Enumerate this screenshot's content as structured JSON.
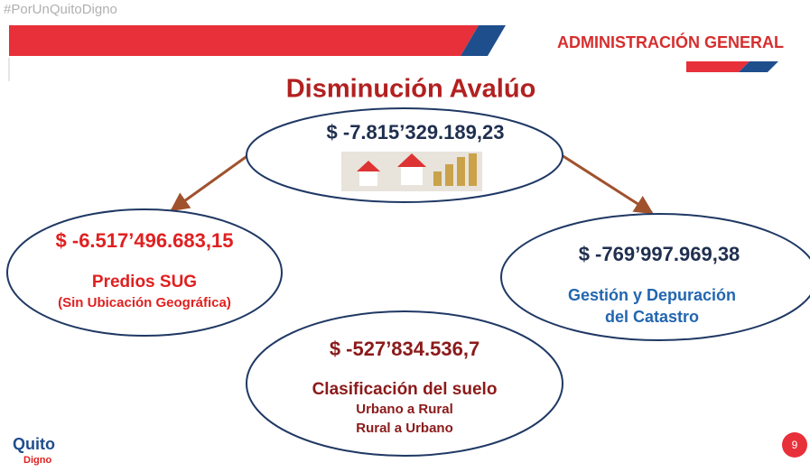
{
  "header": {
    "hashtag": "#PorUnQuitoDigno",
    "department": "ADMINISTRACIÓN GENERAL"
  },
  "title": "Disminución Avalúo",
  "nodes": [
    {
      "amount": "$ -7.815’329.189,23"
    },
    {
      "amount": "$  -6.517’496.683,15",
      "label": "Predios SUG",
      "sublabel": "(Sin Ubicación Geográfica)"
    },
    {
      "amount": "$  -769’997.969,38",
      "label": "Gestión y Depuración",
      "sublabel": "del Catastro"
    },
    {
      "amount": "$  -527’834.536,7",
      "label": "Clasificación del suelo",
      "items": [
        "Urbano a Rural",
        "Rural a Urbano"
      ]
    }
  ],
  "footer": {
    "logo_top": "Quito",
    "logo_bottom": "Digno",
    "page": "9"
  }
}
